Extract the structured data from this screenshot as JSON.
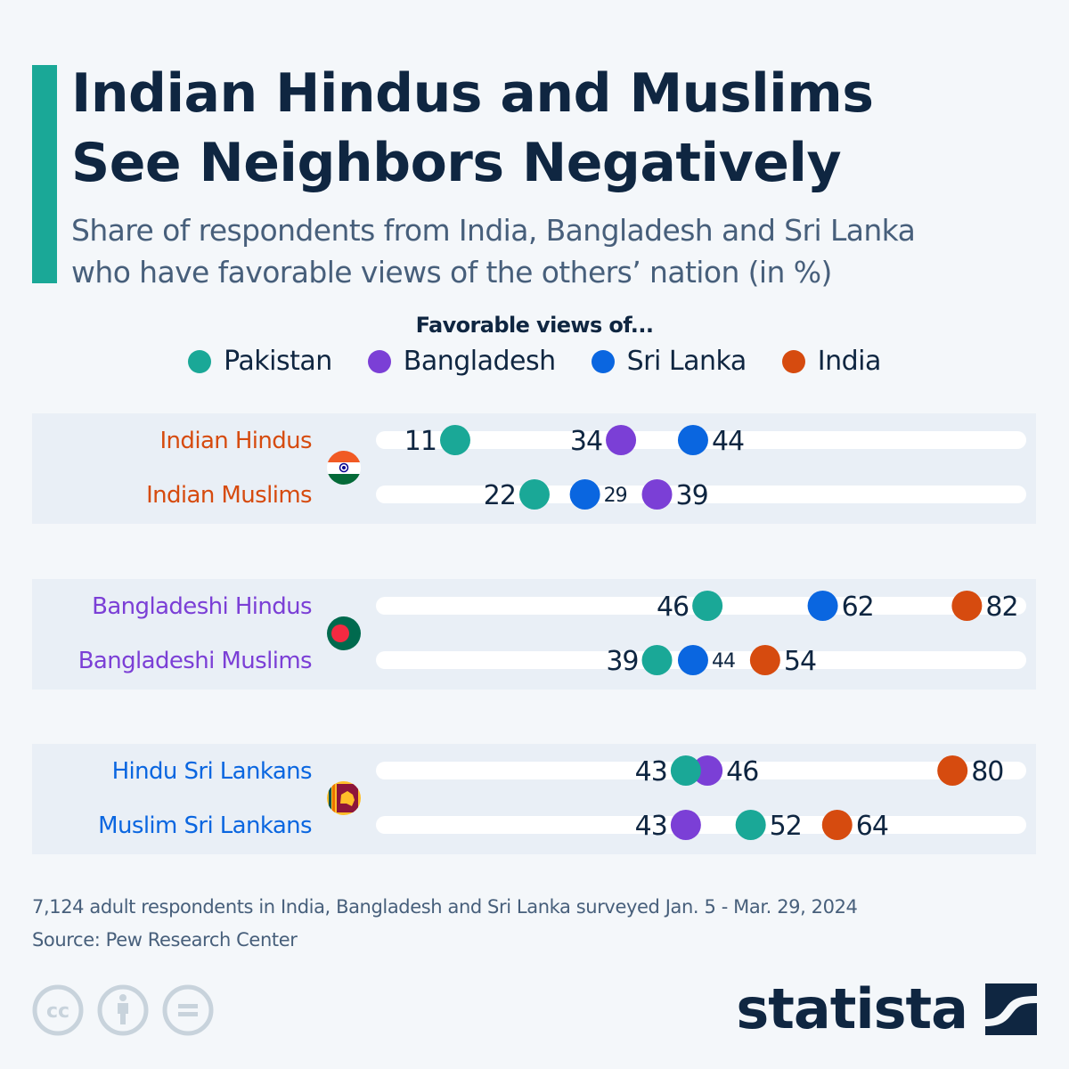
{
  "header": {
    "title_line1": "Indian Hindus and Muslims",
    "title_line2": "See Neighbors Negatively",
    "subtitle_line1": "Share of respondents from India, Bangladesh and Sri Lanka",
    "subtitle_line2": "who have favorable views of the others’ nation (in %)"
  },
  "colors": {
    "Pakistan": "#1aa897",
    "Bangladesh": "#7b3fd6",
    "Sri Lanka": "#0a66e0",
    "India": "#d64b0f",
    "panel": "#e9eff6",
    "track": "#ffffff",
    "value_text": "#0f2641"
  },
  "chart_data": {
    "type": "scatter",
    "variant": "dot-plot",
    "title": "Indian Hindus and Muslims See Neighbors Negatively",
    "subtitle": "Share of respondents from India, Bangladesh and Sri Lanka who have favorable views of the others’ nation (in %)",
    "xlabel": "",
    "ylabel": "",
    "unit": "%",
    "xlim": [
      0,
      90
    ],
    "grid": false,
    "legend_title": "Favorable views of...",
    "legend_position": "top-center",
    "legend": [
      "Pakistan",
      "Bangladesh",
      "Sri Lanka",
      "India"
    ],
    "groups": [
      {
        "country": "India",
        "flag": "india-flag",
        "label_color": "#d64b0f",
        "rows": [
          {
            "label": "Indian Hindus",
            "points": [
              {
                "series": "Pakistan",
                "value": 11,
                "label_side": "left"
              },
              {
                "series": "Bangladesh",
                "value": 34,
                "label_side": "left"
              },
              {
                "series": "Sri Lanka",
                "value": 44,
                "label_side": "right"
              }
            ]
          },
          {
            "label": "Indian Muslims",
            "points": [
              {
                "series": "Pakistan",
                "value": 22,
                "label_side": "left"
              },
              {
                "series": "Sri Lanka",
                "value": 29,
                "label_side": "right",
                "small": true
              },
              {
                "series": "Bangladesh",
                "value": 39,
                "label_side": "right"
              }
            ]
          }
        ]
      },
      {
        "country": "Bangladesh",
        "flag": "bangladesh-flag",
        "label_color": "#7b3fd6",
        "rows": [
          {
            "label": "Bangladeshi Hindus",
            "points": [
              {
                "series": "Pakistan",
                "value": 46,
                "label_side": "left"
              },
              {
                "series": "Sri Lanka",
                "value": 62,
                "label_side": "right"
              },
              {
                "series": "India",
                "value": 82,
                "label_side": "right"
              }
            ]
          },
          {
            "label": "Bangladeshi Muslims",
            "points": [
              {
                "series": "Pakistan",
                "value": 39,
                "label_side": "left"
              },
              {
                "series": "Sri Lanka",
                "value": 44,
                "label_side": "right",
                "small": true
              },
              {
                "series": "India",
                "value": 54,
                "label_side": "right"
              }
            ]
          }
        ]
      },
      {
        "country": "Sri Lanka",
        "flag": "sri-lanka-flag",
        "label_color": "#0a66e0",
        "rows": [
          {
            "label": "Hindu Sri Lankans",
            "points": [
              {
                "series": "Bangladesh",
                "value": 46,
                "label_side": "right"
              },
              {
                "series": "Pakistan",
                "value": 43,
                "label_side": "left"
              },
              {
                "series": "India",
                "value": 80,
                "label_side": "right"
              }
            ]
          },
          {
            "label": "Muslim Sri Lankans",
            "points": [
              {
                "series": "Bangladesh",
                "value": 43,
                "label_side": "left"
              },
              {
                "series": "Pakistan",
                "value": 52,
                "label_side": "right"
              },
              {
                "series": "India",
                "value": 64,
                "label_side": "right"
              }
            ]
          }
        ]
      }
    ]
  },
  "footer": {
    "note": "7,124 adult respondents in India, Bangladesh and Sri Lanka surveyed Jan. 5 - Mar. 29, 2024",
    "source": "Source: Pew Research Center",
    "license_icons": [
      "cc-icon",
      "attribution-icon",
      "no-derivatives-icon"
    ],
    "brand": "statista"
  }
}
